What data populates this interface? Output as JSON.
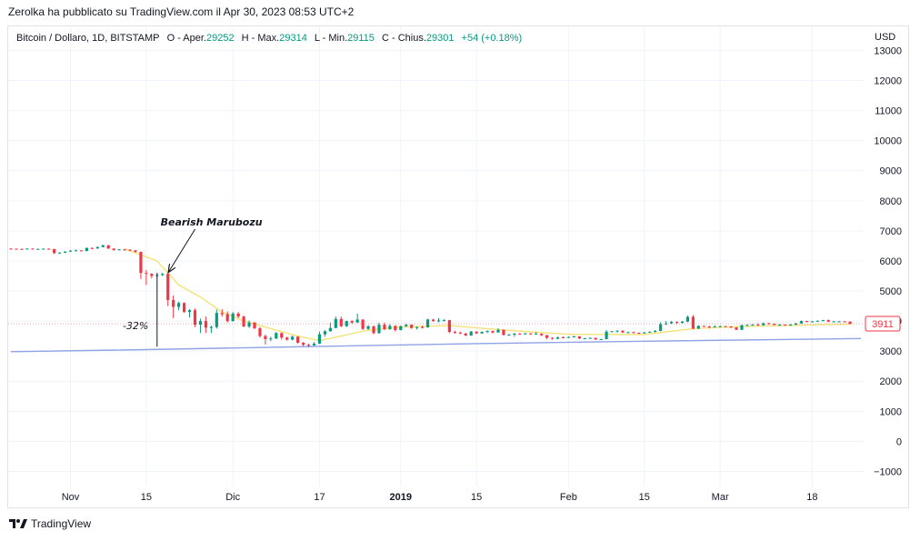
{
  "header": {
    "publisher_line": "Zerolka ha pubblicato su TradingView.com il Apr 30, 2023 08:53 UTC+2"
  },
  "legend": {
    "symbol": "Bitcoin / Dollaro, 1D, BITSTAMP",
    "open_label": "O - Aper.",
    "open_value": "29252",
    "high_label": "H - Max.",
    "high_value": "29314",
    "low_label": "L - Min.",
    "low_value": "29115",
    "close_label": "C - Chius.",
    "close_value": "29301",
    "change": "+54 (+0.18%)"
  },
  "currency": "USD",
  "price_tag": "3911",
  "footer": {
    "brand": "TradingView"
  },
  "colors": {
    "up": "#089981",
    "down": "#f23645",
    "ma_yellow": "#f5e37a",
    "ma_blue": "#8fa3e6",
    "grid": "#f0f3fa"
  },
  "chart_data": {
    "type": "candlestick",
    "ylim": [
      -1500,
      13800
    ],
    "y_ticks": [
      13000,
      12000,
      11000,
      10000,
      9000,
      8000,
      7000,
      6000,
      5000,
      4000,
      3000,
      2000,
      1000,
      0,
      -1000
    ],
    "x_ticks": [
      {
        "label": "Nov",
        "date": "2018-11-01"
      },
      {
        "label": "15",
        "date": "2018-11-15"
      },
      {
        "label": "Dic",
        "date": "2018-12-01"
      },
      {
        "label": "17",
        "date": "2018-12-17"
      },
      {
        "label": "2019",
        "date": "2019-01-01",
        "bold": true
      },
      {
        "label": "15",
        "date": "2019-01-15"
      },
      {
        "label": "Feb",
        "date": "2019-02-01"
      },
      {
        "label": "15",
        "date": "2019-02-15"
      },
      {
        "label": "Mar",
        "date": "2019-03-01"
      },
      {
        "label": "18",
        "date": "2019-03-18"
      }
    ],
    "x_range": [
      "2018-10-21",
      "2019-03-27"
    ],
    "candles": [
      [
        "2018-10-21",
        6410,
        6420,
        6390,
        6405
      ],
      [
        "2018-10-22",
        6405,
        6415,
        6380,
        6400
      ],
      [
        "2018-10-23",
        6400,
        6410,
        6370,
        6390
      ],
      [
        "2018-10-24",
        6390,
        6420,
        6380,
        6410
      ],
      [
        "2018-10-25",
        6410,
        6415,
        6380,
        6395
      ],
      [
        "2018-10-26",
        6395,
        6410,
        6380,
        6400
      ],
      [
        "2018-10-27",
        6400,
        6415,
        6390,
        6405
      ],
      [
        "2018-10-28",
        6405,
        6420,
        6390,
        6395
      ],
      [
        "2018-10-29",
        6395,
        6400,
        6230,
        6260
      ],
      [
        "2018-10-30",
        6260,
        6290,
        6240,
        6275
      ],
      [
        "2018-10-31",
        6275,
        6320,
        6260,
        6310
      ],
      [
        "2018-11-01",
        6310,
        6360,
        6300,
        6340
      ],
      [
        "2018-11-02",
        6340,
        6380,
        6330,
        6350
      ],
      [
        "2018-11-03",
        6350,
        6360,
        6320,
        6330
      ],
      [
        "2018-11-04",
        6330,
        6450,
        6320,
        6430
      ],
      [
        "2018-11-05",
        6430,
        6450,
        6400,
        6415
      ],
      [
        "2018-11-06",
        6415,
        6480,
        6400,
        6460
      ],
      [
        "2018-11-07",
        6460,
        6540,
        6450,
        6520
      ],
      [
        "2018-11-08",
        6520,
        6530,
        6400,
        6410
      ],
      [
        "2018-11-09",
        6410,
        6420,
        6340,
        6360
      ],
      [
        "2018-11-10",
        6360,
        6400,
        6350,
        6385
      ],
      [
        "2018-11-11",
        6385,
        6400,
        6340,
        6370
      ],
      [
        "2018-11-12",
        6370,
        6390,
        6330,
        6350
      ],
      [
        "2018-11-13",
        6350,
        6360,
        6280,
        6300
      ],
      [
        "2018-11-14",
        6300,
        6310,
        5400,
        5600
      ],
      [
        "2018-11-15",
        5600,
        5700,
        5200,
        5570
      ],
      [
        "2018-11-16",
        5570,
        5590,
        5420,
        5500
      ],
      [
        "2018-11-17",
        5500,
        5560,
        5460,
        5530
      ],
      [
        "2018-11-18",
        5530,
        5600,
        5500,
        5570
      ],
      [
        "2018-11-19",
        5570,
        5590,
        4500,
        4700
      ],
      [
        "2018-11-20",
        4700,
        4850,
        4100,
        4470
      ],
      [
        "2018-11-21",
        4470,
        4650,
        4360,
        4600
      ],
      [
        "2018-11-22",
        4600,
        4620,
        4280,
        4300
      ],
      [
        "2018-11-23",
        4300,
        4400,
        4120,
        4360
      ],
      [
        "2018-11-24",
        4360,
        4420,
        3800,
        3880
      ],
      [
        "2018-11-25",
        3880,
        4080,
        3600,
        4000
      ],
      [
        "2018-11-26",
        4000,
        4150,
        3600,
        3780
      ],
      [
        "2018-11-27",
        3780,
        3850,
        3600,
        3800
      ],
      [
        "2018-11-28",
        3800,
        4380,
        3750,
        4270
      ],
      [
        "2018-11-29",
        4270,
        4400,
        4150,
        4230
      ],
      [
        "2018-11-30",
        4230,
        4320,
        3950,
        4000
      ],
      [
        "2018-12-01",
        4000,
        4300,
        3980,
        4250
      ],
      [
        "2018-12-02",
        4250,
        4300,
        4100,
        4150
      ],
      [
        "2018-12-03",
        4150,
        4180,
        3800,
        3820
      ],
      [
        "2018-12-04",
        3820,
        4020,
        3770,
        3950
      ],
      [
        "2018-12-05",
        3950,
        3970,
        3730,
        3760
      ],
      [
        "2018-12-06",
        3760,
        3800,
        3450,
        3500
      ],
      [
        "2018-12-07",
        3500,
        3550,
        3220,
        3400
      ],
      [
        "2018-12-08",
        3400,
        3480,
        3330,
        3420
      ],
      [
        "2018-12-09",
        3420,
        3640,
        3400,
        3600
      ],
      [
        "2018-12-10",
        3600,
        3620,
        3380,
        3450
      ],
      [
        "2018-12-11",
        3450,
        3480,
        3350,
        3380
      ],
      [
        "2018-12-12",
        3380,
        3520,
        3360,
        3480
      ],
      [
        "2018-12-13",
        3480,
        3490,
        3250,
        3280
      ],
      [
        "2018-12-14",
        3280,
        3300,
        3170,
        3210
      ],
      [
        "2018-12-15",
        3210,
        3250,
        3130,
        3190
      ],
      [
        "2018-12-16",
        3190,
        3300,
        3180,
        3250
      ],
      [
        "2018-12-17",
        3250,
        3650,
        3240,
        3560
      ],
      [
        "2018-12-18",
        3560,
        3700,
        3480,
        3660
      ],
      [
        "2018-12-19",
        3660,
        3950,
        3650,
        3770
      ],
      [
        "2018-12-20",
        3770,
        4150,
        3760,
        4070
      ],
      [
        "2018-12-21",
        4070,
        4150,
        3800,
        3830
      ],
      [
        "2018-12-22",
        3830,
        4010,
        3800,
        4000
      ],
      [
        "2018-12-23",
        4000,
        4030,
        3900,
        3950
      ],
      [
        "2018-12-24",
        3950,
        4250,
        3940,
        4050
      ],
      [
        "2018-12-25",
        4050,
        4060,
        3700,
        3740
      ],
      [
        "2018-12-26",
        3740,
        3860,
        3700,
        3830
      ],
      [
        "2018-12-27",
        3830,
        3840,
        3560,
        3600
      ],
      [
        "2018-12-28",
        3600,
        3950,
        3580,
        3880
      ],
      [
        "2018-12-29",
        3880,
        3950,
        3700,
        3730
      ],
      [
        "2018-12-30",
        3730,
        3900,
        3710,
        3840
      ],
      [
        "2018-12-31",
        3840,
        3860,
        3650,
        3700
      ],
      [
        "2019-01-01",
        3700,
        3850,
        3690,
        3830
      ],
      [
        "2019-01-02",
        3830,
        3900,
        3800,
        3880
      ],
      [
        "2019-01-03",
        3880,
        3890,
        3740,
        3770
      ],
      [
        "2019-01-04",
        3770,
        3820,
        3720,
        3800
      ],
      [
        "2019-01-05",
        3800,
        3850,
        3760,
        3790
      ],
      [
        "2019-01-06",
        3790,
        4080,
        3780,
        4050
      ],
      [
        "2019-01-07",
        4050,
        4070,
        3980,
        4000
      ],
      [
        "2019-01-08",
        4000,
        4100,
        3960,
        4020
      ],
      [
        "2019-01-09",
        4020,
        4060,
        3990,
        4030
      ],
      [
        "2019-01-10",
        4030,
        4040,
        3600,
        3640
      ],
      [
        "2019-01-11",
        3640,
        3680,
        3580,
        3620
      ],
      [
        "2019-01-12",
        3620,
        3640,
        3560,
        3590
      ],
      [
        "2019-01-13",
        3590,
        3600,
        3500,
        3520
      ],
      [
        "2019-01-14",
        3520,
        3670,
        3510,
        3650
      ],
      [
        "2019-01-15",
        3650,
        3660,
        3570,
        3590
      ],
      [
        "2019-01-16",
        3590,
        3660,
        3580,
        3640
      ],
      [
        "2019-01-17",
        3640,
        3690,
        3600,
        3670
      ],
      [
        "2019-01-18",
        3670,
        3680,
        3590,
        3620
      ],
      [
        "2019-01-19",
        3620,
        3760,
        3610,
        3710
      ],
      [
        "2019-01-20",
        3710,
        3720,
        3520,
        3540
      ],
      [
        "2019-01-21",
        3540,
        3570,
        3510,
        3550
      ],
      [
        "2019-01-22",
        3550,
        3610,
        3480,
        3580
      ],
      [
        "2019-01-23",
        3580,
        3600,
        3540,
        3560
      ],
      [
        "2019-01-24",
        3560,
        3610,
        3550,
        3590
      ],
      [
        "2019-01-25",
        3590,
        3600,
        3540,
        3570
      ],
      [
        "2019-01-26",
        3570,
        3640,
        3560,
        3580
      ],
      [
        "2019-01-27",
        3580,
        3590,
        3500,
        3530
      ],
      [
        "2019-01-28",
        3530,
        3540,
        3400,
        3440
      ],
      [
        "2019-01-29",
        3440,
        3460,
        3380,
        3410
      ],
      [
        "2019-01-30",
        3410,
        3480,
        3400,
        3460
      ],
      [
        "2019-01-31",
        3460,
        3490,
        3430,
        3450
      ],
      [
        "2019-02-01",
        3450,
        3490,
        3440,
        3470
      ],
      [
        "2019-02-02",
        3470,
        3510,
        3450,
        3490
      ],
      [
        "2019-02-03",
        3490,
        3500,
        3400,
        3420
      ],
      [
        "2019-02-04",
        3420,
        3440,
        3400,
        3430
      ],
      [
        "2019-02-05",
        3430,
        3450,
        3410,
        3440
      ],
      [
        "2019-02-06",
        3440,
        3450,
        3370,
        3390
      ],
      [
        "2019-02-07",
        3390,
        3410,
        3370,
        3400
      ],
      [
        "2019-02-08",
        3400,
        3700,
        3390,
        3650
      ],
      [
        "2019-02-09",
        3650,
        3670,
        3630,
        3660
      ],
      [
        "2019-02-10",
        3660,
        3690,
        3620,
        3680
      ],
      [
        "2019-02-11",
        3680,
        3690,
        3600,
        3620
      ],
      [
        "2019-02-12",
        3620,
        3650,
        3600,
        3630
      ],
      [
        "2019-02-13",
        3630,
        3650,
        3590,
        3610
      ],
      [
        "2019-02-14",
        3610,
        3620,
        3570,
        3590
      ],
      [
        "2019-02-15",
        3590,
        3640,
        3580,
        3620
      ],
      [
        "2019-02-16",
        3620,
        3660,
        3610,
        3640
      ],
      [
        "2019-02-17",
        3640,
        3700,
        3620,
        3670
      ],
      [
        "2019-02-18",
        3670,
        3960,
        3660,
        3900
      ],
      [
        "2019-02-19",
        3900,
        4000,
        3870,
        3920
      ],
      [
        "2019-02-20",
        3920,
        4000,
        3900,
        3970
      ],
      [
        "2019-02-21",
        3970,
        3990,
        3900,
        3940
      ],
      [
        "2019-02-22",
        3940,
        4000,
        3920,
        3980
      ],
      [
        "2019-02-23",
        3980,
        4180,
        3960,
        4140
      ],
      [
        "2019-02-24",
        4140,
        4200,
        3720,
        3750
      ],
      [
        "2019-02-25",
        3750,
        3860,
        3730,
        3840
      ],
      [
        "2019-02-26",
        3840,
        3850,
        3800,
        3820
      ],
      [
        "2019-02-27",
        3820,
        3840,
        3760,
        3810
      ],
      [
        "2019-02-28",
        3810,
        3860,
        3790,
        3820
      ],
      [
        "2019-03-01",
        3820,
        3850,
        3800,
        3830
      ],
      [
        "2019-03-02",
        3830,
        3840,
        3800,
        3820
      ],
      [
        "2019-03-03",
        3820,
        3830,
        3760,
        3790
      ],
      [
        "2019-03-04",
        3790,
        3800,
        3700,
        3710
      ],
      [
        "2019-03-05",
        3710,
        3880,
        3700,
        3860
      ],
      [
        "2019-03-06",
        3860,
        3890,
        3840,
        3870
      ],
      [
        "2019-03-07",
        3870,
        3900,
        3850,
        3880
      ],
      [
        "2019-03-08",
        3880,
        3930,
        3840,
        3860
      ],
      [
        "2019-03-09",
        3860,
        3950,
        3850,
        3930
      ],
      [
        "2019-03-10",
        3930,
        3940,
        3880,
        3910
      ],
      [
        "2019-03-11",
        3910,
        3920,
        3860,
        3870
      ],
      [
        "2019-03-12",
        3870,
        3900,
        3840,
        3880
      ],
      [
        "2019-03-13",
        3880,
        3890,
        3850,
        3870
      ],
      [
        "2019-03-14",
        3870,
        3900,
        3840,
        3880
      ],
      [
        "2019-03-15",
        3880,
        3940,
        3870,
        3920
      ],
      [
        "2019-03-16",
        3920,
        4020,
        3910,
        4000
      ],
      [
        "2019-03-17",
        4000,
        4010,
        3960,
        3980
      ],
      [
        "2019-03-18",
        3980,
        4000,
        3960,
        3990
      ],
      [
        "2019-03-19",
        3990,
        4020,
        3970,
        4010
      ],
      [
        "2019-03-20",
        4010,
        4040,
        3990,
        4030
      ],
      [
        "2019-03-21",
        4030,
        4050,
        3960,
        3980
      ],
      [
        "2019-03-22",
        3980,
        4000,
        3970,
        3990
      ],
      [
        "2019-03-23",
        3990,
        4000,
        3970,
        3990
      ],
      [
        "2019-03-24",
        3990,
        4000,
        3960,
        3980
      ],
      [
        "2019-03-25",
        3980,
        3990,
        3890,
        3911
      ]
    ],
    "ma_yellow": {
      "x": [
        "2018-11-11",
        "2018-11-17",
        "2018-11-21",
        "2018-11-25",
        "2018-11-29",
        "2018-12-03",
        "2018-12-08",
        "2018-12-13",
        "2018-12-17",
        "2018-12-21",
        "2018-12-26",
        "2019-01-01",
        "2019-01-10",
        "2019-01-20",
        "2019-02-01",
        "2019-02-15",
        "2019-02-24",
        "2019-03-05",
        "2019-03-25"
      ],
      "y": [
        6400,
        6000,
        5200,
        4800,
        4300,
        4000,
        3750,
        3500,
        3350,
        3500,
        3700,
        3800,
        3850,
        3700,
        3560,
        3550,
        3750,
        3820,
        3900
      ]
    },
    "ma_blue": {
      "x": [
        "2018-10-21",
        "2018-11-15",
        "2018-12-15",
        "2019-01-15",
        "2019-02-15",
        "2019-03-27"
      ],
      "y": [
        2980,
        3050,
        3150,
        3250,
        3330,
        3420
      ]
    },
    "annotations": [
      {
        "text": "Bearish Marubozu",
        "date": "2018-11-21",
        "price": 7300
      },
      {
        "text": "-32%",
        "date": "2018-11-13",
        "price": 3850
      }
    ],
    "measure_line": {
      "date": "2018-11-17",
      "from": 5600,
      "to": 3150
    },
    "last_price": 3911
  }
}
